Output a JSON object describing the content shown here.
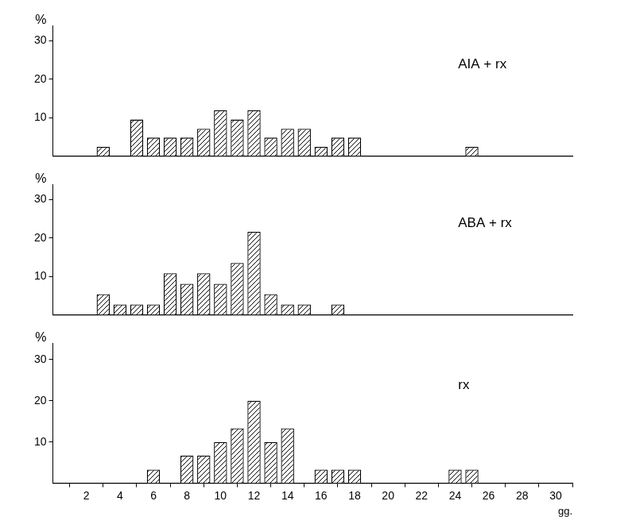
{
  "chart_data": [
    {
      "type": "bar",
      "title": "AIA + rx",
      "y_label": "%",
      "x": [
        3,
        5,
        6,
        7,
        8,
        9,
        10,
        11,
        12,
        13,
        14,
        15,
        16,
        17,
        18,
        25
      ],
      "values": [
        2.4,
        9.5,
        4.8,
        4.8,
        4.8,
        7.1,
        11.9,
        9.5,
        11.9,
        4.8,
        7.1,
        7.1,
        2.4,
        4.8,
        4.8,
        2.4
      ],
      "xlim": [
        0,
        31
      ],
      "ylim": [
        0,
        34
      ],
      "yticks": [
        10,
        20,
        30
      ],
      "color": "#000000",
      "grid": false,
      "tick_labels": "y"
    },
    {
      "type": "bar",
      "title": "ABA + rx",
      "y_label": "%",
      "x": [
        3,
        4,
        5,
        6,
        7,
        8,
        9,
        10,
        11,
        12,
        13,
        14,
        15,
        17
      ],
      "values": [
        5.4,
        2.7,
        2.7,
        2.7,
        10.8,
        8.1,
        10.8,
        8.1,
        13.5,
        21.6,
        5.4,
        2.7,
        2.7,
        2.7
      ],
      "xlim": [
        0,
        31
      ],
      "ylim": [
        0,
        34
      ],
      "yticks": [
        10,
        20,
        30
      ],
      "color": "#000000",
      "grid": false,
      "tick_labels": "y"
    },
    {
      "type": "bar",
      "title": "rx",
      "y_label": "%",
      "x_label": "gg.",
      "x": [
        6,
        8,
        9,
        10,
        11,
        12,
        13,
        14,
        16,
        17,
        18,
        24,
        25
      ],
      "values": [
        3.3,
        6.7,
        6.7,
        10,
        13.3,
        20,
        10,
        13.3,
        3.3,
        3.3,
        3.3,
        3.3,
        3.3
      ],
      "xlim": [
        0,
        31
      ],
      "ylim": [
        0,
        34
      ],
      "yticks": [
        10,
        20,
        30
      ],
      "xticks": [
        2,
        4,
        6,
        8,
        10,
        12,
        14,
        16,
        18,
        20,
        22,
        24,
        26,
        28,
        30
      ],
      "color": "#000000",
      "grid": false
    }
  ]
}
